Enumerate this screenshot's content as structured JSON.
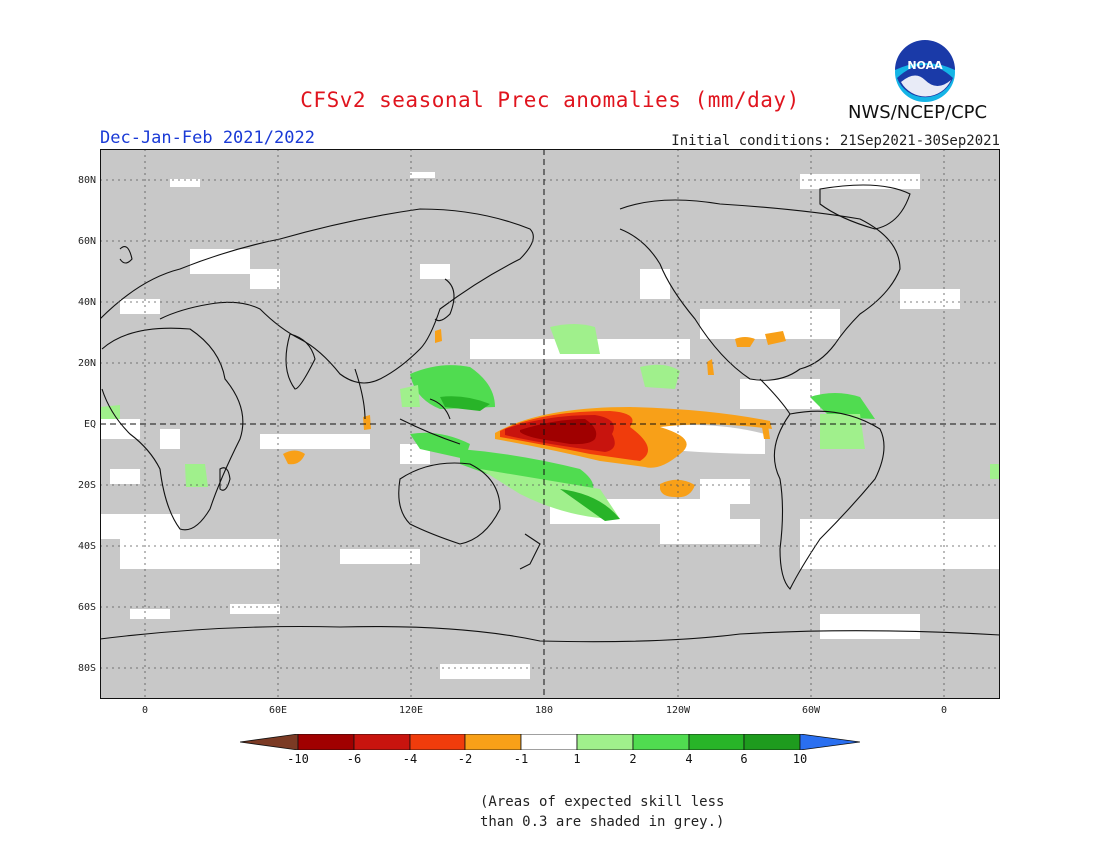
{
  "header": {
    "title": "CFSv2 seasonal Prec anomalies (mm/day)",
    "season": "Dec-Jan-Feb 2021/2022",
    "initial_conditions": "Initial conditions: 21Sep2021-30Sep2021",
    "agency": "NWS/NCEP/CPC",
    "logo_text": "NOAA"
  },
  "map": {
    "lat_labels": [
      "80N",
      "60N",
      "40N",
      "20N",
      "EQ",
      "20S",
      "40S",
      "60S",
      "80S"
    ],
    "lon_labels": [
      "0",
      "60E",
      "120E",
      "180",
      "120W",
      "60W",
      "0"
    ],
    "shading_note": "grey"
  },
  "colorbar": {
    "labels": [
      "-10",
      "-6",
      "-4",
      "-2",
      "-1",
      "1",
      "2",
      "4",
      "6",
      "10"
    ],
    "colors": [
      "#7b3a24",
      "#a00000",
      "#c8140e",
      "#f03c0c",
      "#f8a018",
      "#ffffff",
      "#a0f08c",
      "#50dc50",
      "#28b428",
      "#1e9b1e",
      "#2a6ff0"
    ]
  },
  "note": {
    "line1": "(Areas of expected skill less",
    "line2": "than 0.3 are shaded in grey.)"
  },
  "colors": {
    "land_bg": "#c8c8c8",
    "title": "#e0141e",
    "subtitle": "#1a3ad6"
  }
}
